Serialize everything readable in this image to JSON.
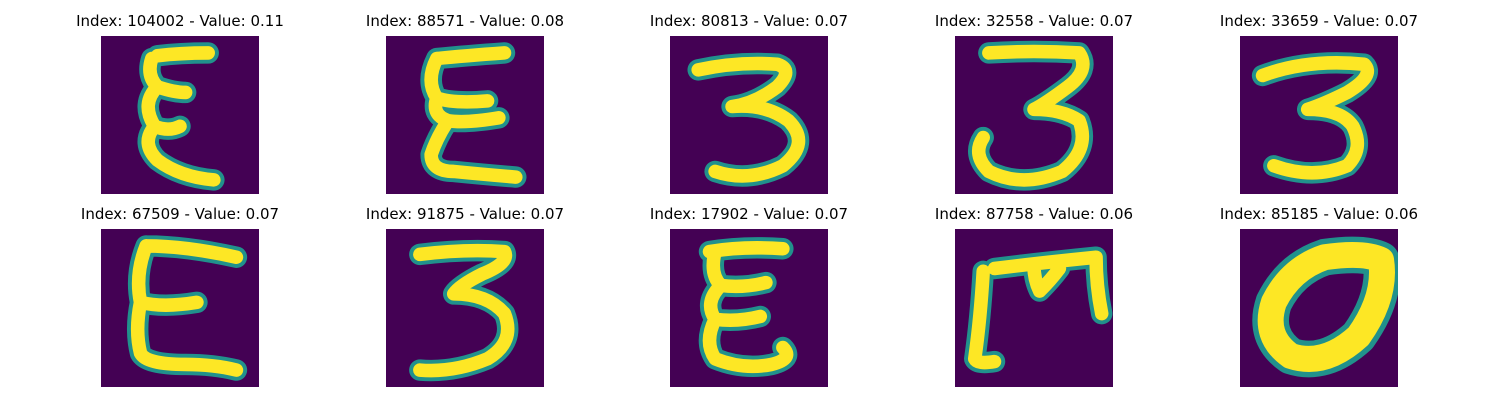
{
  "figure": {
    "background": "#ffffff",
    "colormap": "viridis",
    "colors": {
      "background_pixel": "#440154",
      "edge_pixel": "#21918c",
      "stroke_pixel": "#fde725"
    }
  },
  "panels": [
    {
      "title": "Index: 104002 - Value: 0.11",
      "glyph": "xi"
    },
    {
      "title": "Index: 88571 - Value: 0.08",
      "glyph": "sigma-like"
    },
    {
      "title": "Index: 80813 - Value: 0.07",
      "glyph": "three"
    },
    {
      "title": "Index: 32558 - Value: 0.07",
      "glyph": "three"
    },
    {
      "title": "Index: 33659 - Value: 0.07",
      "glyph": "three"
    },
    {
      "title": "Index: 67509 - Value: 0.07",
      "glyph": "epsilon"
    },
    {
      "title": "Index: 91875 - Value: 0.07",
      "glyph": "three"
    },
    {
      "title": "Index: 17902 - Value: 0.07",
      "glyph": "xi"
    },
    {
      "title": "Index: 87758 - Value: 0.06",
      "glyph": "bracket-m"
    },
    {
      "title": "Index: 85185 - Value: 0.06",
      "glyph": "zero"
    }
  ]
}
